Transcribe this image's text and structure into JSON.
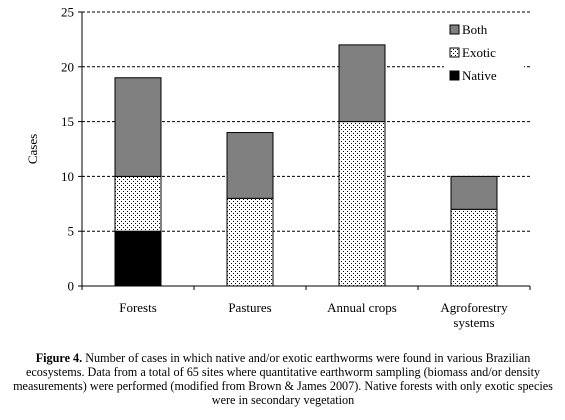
{
  "chart_data": {
    "type": "bar",
    "stacked": true,
    "categories": [
      "Forests",
      "Pastures",
      "Annual crops",
      "Agroforestry systems"
    ],
    "category_lines": [
      [
        "Forests"
      ],
      [
        "Pastures"
      ],
      [
        "Annual crops"
      ],
      [
        "Agroforestry",
        "systems"
      ]
    ],
    "series": [
      {
        "name": "Native",
        "values": [
          5,
          0,
          0,
          0
        ],
        "fill": "#000000"
      },
      {
        "name": "Exotic",
        "values": [
          5,
          8,
          15,
          7
        ],
        "fill": "dots"
      },
      {
        "name": "Both",
        "values": [
          9,
          6,
          7,
          3
        ],
        "fill": "#808080"
      }
    ],
    "legend_order": [
      "Both",
      "Exotic",
      "Native"
    ],
    "legend_position": "top-right",
    "title": "",
    "xlabel": "",
    "ylabel": "Cases",
    "ylim": [
      0,
      25
    ],
    "yticks": [
      "0",
      "5",
      "10",
      "15",
      "20",
      "25"
    ],
    "grid": "horizontal dashed"
  },
  "caption": {
    "label": "Figure 4.",
    "text": " Number of cases in which native and/or exotic earthworms were found in various Brazilian ecosystems. Data from a total of 65 sites where quantitative earthworm sampling (biomass and/or density measurements) were performed (modified from Brown & James 2007). Native forests with only exotic species were in secondary vegetation"
  }
}
